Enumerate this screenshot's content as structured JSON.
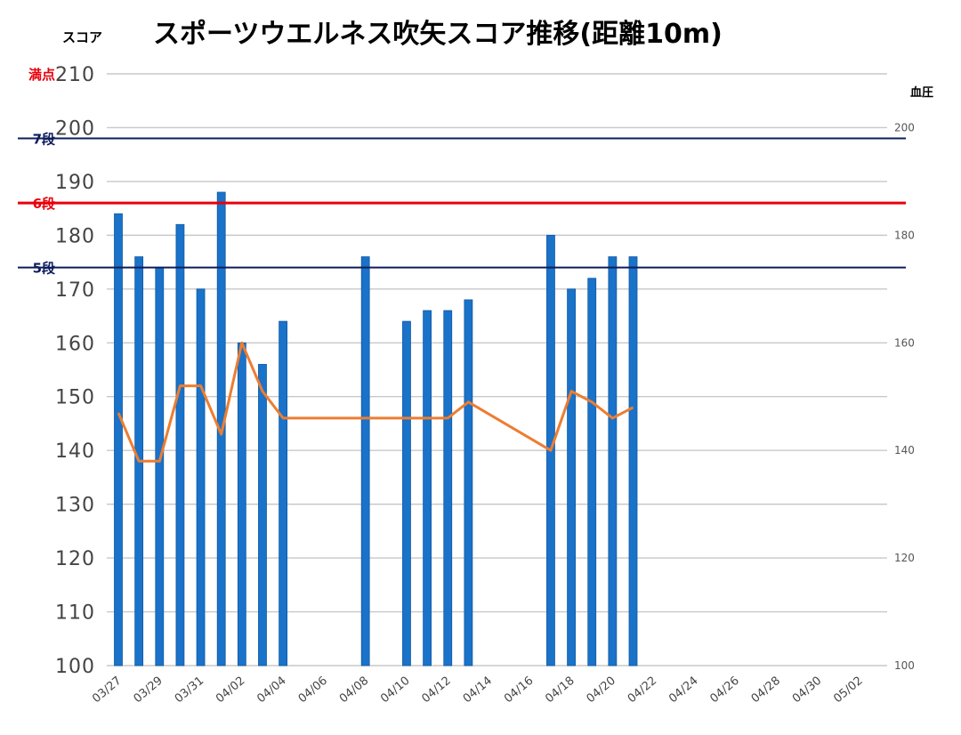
{
  "chart_data": {
    "type": "bar",
    "title": "スポーツウエルネス吹矢スコア推移(距離10m)",
    "ylabel": "スコア",
    "y2label": "血圧",
    "ylim": [
      100,
      210
    ],
    "y2lim": [
      100,
      210
    ],
    "yticks": [
      100,
      110,
      120,
      130,
      140,
      150,
      160,
      170,
      180,
      190,
      200,
      210
    ],
    "y2ticks": [
      100,
      120,
      140,
      160,
      180,
      200
    ],
    "grid": true,
    "legend": "none",
    "x_dates": [
      "03/27",
      "03/28",
      "03/29",
      "03/30",
      "03/31",
      "04/01",
      "04/02",
      "04/03",
      "04/04",
      "04/05",
      "04/06",
      "04/07",
      "04/08",
      "04/09",
      "04/10",
      "04/11",
      "04/12",
      "04/13",
      "04/14",
      "04/15",
      "04/16",
      "04/17",
      "04/18",
      "04/19",
      "04/20",
      "04/21",
      "04/22",
      "04/23",
      "04/24",
      "04/25",
      "04/26",
      "04/27",
      "04/28",
      "04/29",
      "04/30",
      "05/01",
      "05/02",
      "05/03"
    ],
    "xtick_labels": [
      "03/27",
      "03/29",
      "03/31",
      "04/02",
      "04/04",
      "04/06",
      "04/08",
      "04/10",
      "04/12",
      "04/14",
      "04/16",
      "04/18",
      "04/20",
      "04/22",
      "04/24",
      "04/26",
      "04/28",
      "04/30",
      "05/02"
    ],
    "series": [
      {
        "type": "bar",
        "color": "#1a73c8",
        "x": [
          "03/27",
          "03/28",
          "03/29",
          "03/30",
          "03/31",
          "04/01",
          "04/02",
          "04/03",
          "04/04",
          "04/08",
          "04/10",
          "04/11",
          "04/12",
          "04/13",
          "04/17",
          "04/18",
          "04/19",
          "04/20",
          "04/21"
        ],
        "values": [
          184,
          176,
          174,
          182,
          170,
          188,
          160,
          156,
          164,
          176,
          164,
          166,
          166,
          168,
          180,
          170,
          172,
          176,
          176
        ]
      },
      {
        "type": "line",
        "axis": "right",
        "color": "#ed7d31",
        "x": [
          "03/27",
          "03/28",
          "03/29",
          "03/30",
          "03/31",
          "04/01",
          "04/02",
          "04/03",
          "04/04",
          "04/08",
          "04/10",
          "04/11",
          "04/12",
          "04/13",
          "04/17",
          "04/18",
          "04/19",
          "04/20",
          "04/21"
        ],
        "values": [
          147,
          138,
          138,
          152,
          152,
          143,
          160,
          151,
          146,
          146,
          146,
          146,
          146,
          149,
          140,
          151,
          149,
          146,
          148
        ]
      }
    ],
    "reference_lines": [
      {
        "label": "満点",
        "value": 210,
        "color": "#e8000b",
        "line": false
      },
      {
        "label": "7段",
        "value": 198,
        "color": "#0d1d5c",
        "line": true
      },
      {
        "label": "6段",
        "value": 186,
        "color": "#e8000b",
        "line": true
      },
      {
        "label": "5段",
        "value": 174,
        "color": "#0d1d5c",
        "line": true
      }
    ]
  }
}
